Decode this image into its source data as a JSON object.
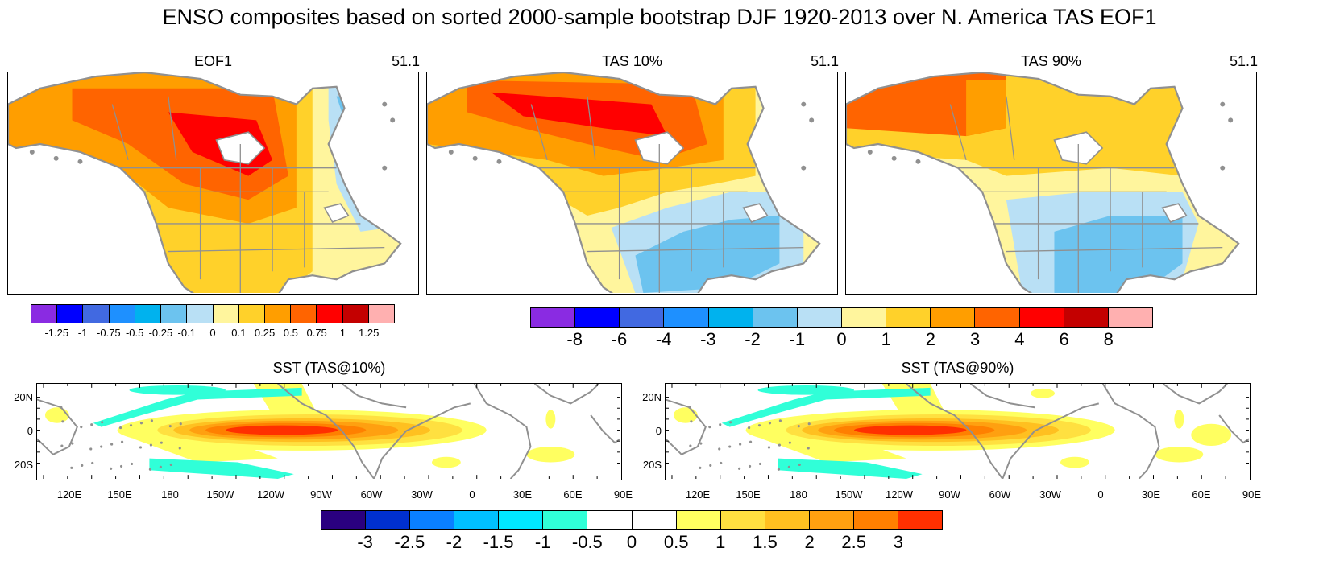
{
  "title": "ENSO composites based on sorted 2000-sample bootstrap DJF 1920-2013 over N. America TAS EOF1",
  "panels": [
    {
      "title": "EOF1",
      "value": "51.1"
    },
    {
      "title": "TAS 10%",
      "value": "51.1"
    },
    {
      "title": "TAS 90%",
      "value": "51.1"
    }
  ],
  "sst_panels": [
    {
      "title": "SST (TAS@10%)"
    },
    {
      "title": "SST (TAS@90%)"
    }
  ],
  "eof_colorbar": {
    "colors": [
      "#8a2be2",
      "#0000ff",
      "#4169e1",
      "#1e90ff",
      "#00b2ee",
      "#6cc3ef",
      "#b9e0f5",
      "#fff59d",
      "#ffd12a",
      "#ff9e00",
      "#ff6400",
      "#ff0000",
      "#c40000",
      "#ffb0b0"
    ],
    "labels": [
      "-1.25",
      "-1",
      "-0.75",
      "-0.5",
      "-0.25",
      "-0.1",
      "0",
      "0.1",
      "0.25",
      "0.5",
      "0.75",
      "1",
      "1.25"
    ]
  },
  "tas_colorbar": {
    "colors": [
      "#8a2be2",
      "#0000ff",
      "#4169e1",
      "#1e90ff",
      "#00b2ee",
      "#6cc3ef",
      "#b9e0f5",
      "#fff59d",
      "#ffd12a",
      "#ff9e00",
      "#ff6400",
      "#ff0000",
      "#c40000",
      "#ffb0b0"
    ],
    "labels": [
      "-8",
      "-6",
      "-4",
      "-3",
      "-2",
      "-1",
      "0",
      "1",
      "2",
      "3",
      "4",
      "6",
      "8"
    ]
  },
  "sst_colorbar": {
    "colors": [
      "#2a0080",
      "#0030d0",
      "#0a80ff",
      "#00c0ff",
      "#00e8ff",
      "#30ffd8",
      "#ffffff",
      "#ffffff",
      "#ffff60",
      "#ffe040",
      "#ffc020",
      "#ffa010",
      "#ff8000",
      "#ff3000"
    ],
    "labels": [
      "-3",
      "-2.5",
      "-2",
      "-1.5",
      "-1",
      "-0.5",
      "0",
      "0.5",
      "1",
      "1.5",
      "2",
      "2.5",
      "3"
    ]
  },
  "sst_axis": {
    "lon_labels": [
      "120E",
      "150E",
      "180",
      "150W",
      "120W",
      "90W",
      "60W",
      "30W",
      "0",
      "30E",
      "60E",
      "90E"
    ],
    "lat_labels": [
      "20N",
      "0",
      "20S"
    ]
  }
}
